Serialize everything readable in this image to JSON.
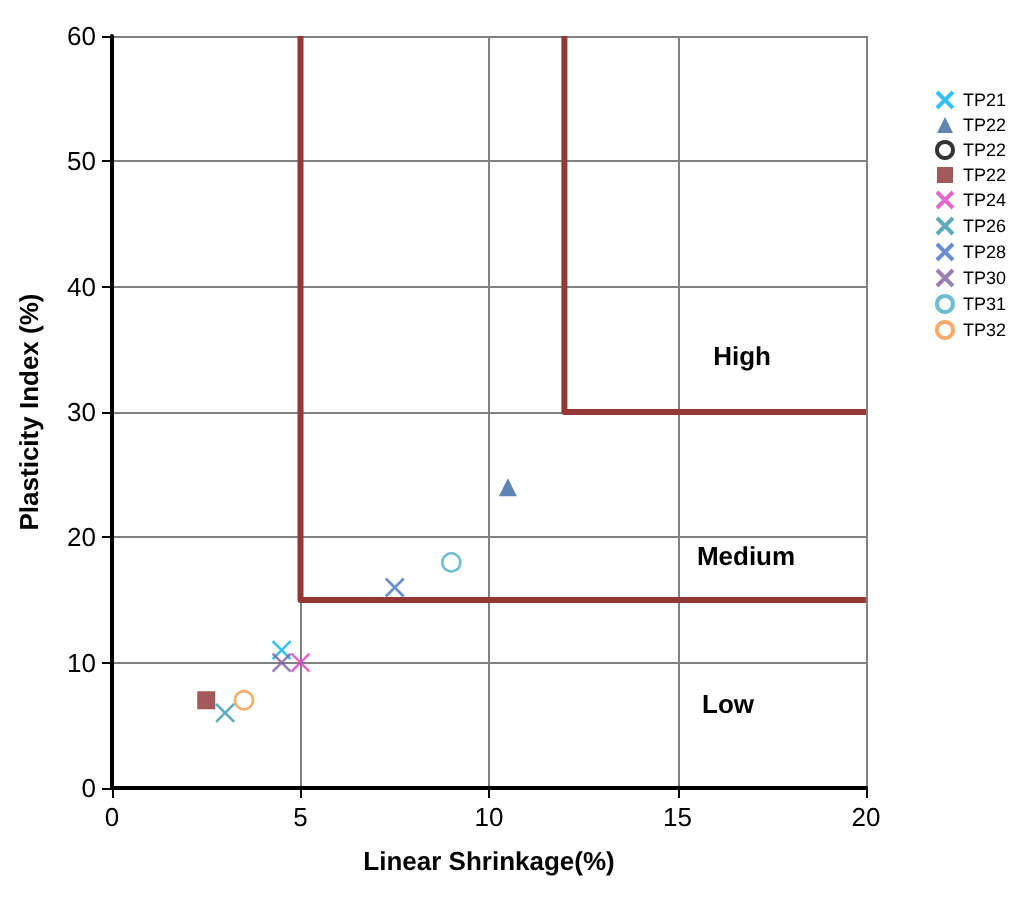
{
  "chart_data": {
    "type": "scatter",
    "xlabel": "Linear Shrinkage(%)",
    "ylabel": "Plasticity Index (%)",
    "xlim": [
      0,
      20
    ],
    "xticks": [
      0,
      5,
      10,
      15,
      20
    ],
    "ylim": [
      0,
      60
    ],
    "yticks": [
      0,
      10,
      20,
      30,
      40,
      50,
      60
    ],
    "grid": true,
    "legend": "right",
    "series": [
      {
        "name": "TP21",
        "color": "#00b0f0",
        "marker": "cross",
        "x": [
          4.5
        ],
        "values": [
          11
        ]
      },
      {
        "name": "TP22",
        "color": "#3a66a0",
        "marker": "triangle",
        "x": [
          10.5
        ],
        "values": [
          24
        ]
      },
      {
        "name": "TP22",
        "color": "#000000",
        "marker": "circle"
      },
      {
        "name": "TP22",
        "color": "#8b3030",
        "marker": "square",
        "x": [
          2.5
        ],
        "values": [
          7
        ]
      },
      {
        "name": "TP24",
        "color": "#e040c0",
        "marker": "cross",
        "x": [
          5
        ],
        "values": [
          10
        ]
      },
      {
        "name": "TP26",
        "color": "#3399aa",
        "marker": "cross",
        "x": [
          3
        ],
        "values": [
          6
        ]
      },
      {
        "name": "TP28",
        "color": "#4472c4",
        "marker": "cross",
        "x": [
          7.5
        ],
        "values": [
          16
        ]
      },
      {
        "name": "TP30",
        "color": "#7f5fa0",
        "marker": "cross",
        "x": [
          4.5
        ],
        "values": [
          10
        ]
      },
      {
        "name": "TP31",
        "color": "#4bacc6",
        "marker": "circle",
        "x": [
          9
        ],
        "values": [
          18
        ]
      },
      {
        "name": "TP32",
        "color": "#f79646",
        "marker": "circle",
        "x": [
          3.5
        ],
        "values": [
          7
        ]
      },
      {
        "type": "line",
        "color": "#953735",
        "marker": "none",
        "x": [
          5,
          5,
          20
        ],
        "values": [
          60,
          15,
          15
        ]
      },
      {
        "type": "line",
        "color": "#953735",
        "marker": "none",
        "x": [
          12,
          12,
          20
        ],
        "values": [
          60,
          30,
          30
        ]
      }
    ],
    "annotations": [
      "High",
      "Medium",
      "Low"
    ]
  }
}
